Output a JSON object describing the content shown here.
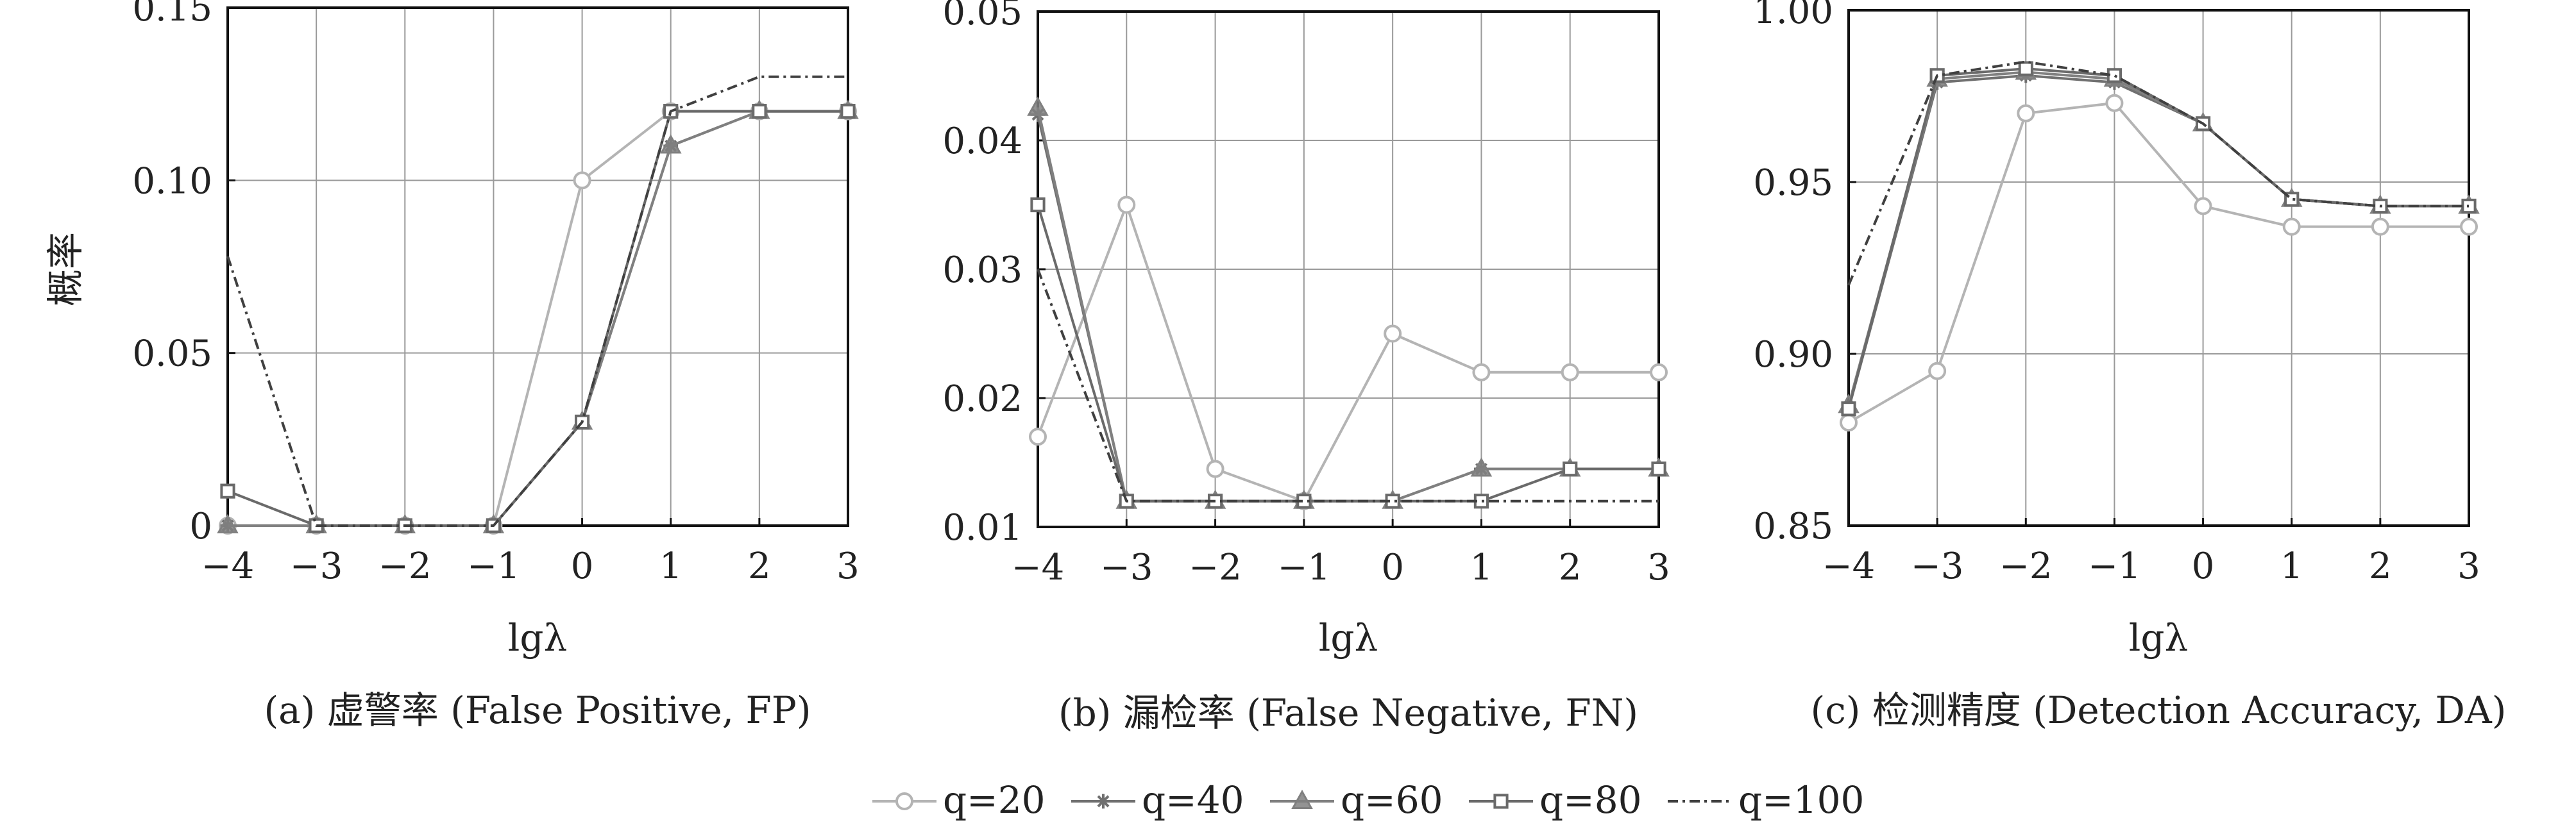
{
  "figure": {
    "ylabel": "概率",
    "legend": {
      "placement": "bottom-center",
      "entries": [
        {
          "series": "q20",
          "label": "q=20"
        },
        {
          "series": "q40",
          "label": "q=40"
        },
        {
          "series": "q60",
          "label": "q=60"
        },
        {
          "series": "q80",
          "label": "q=80"
        },
        {
          "series": "q100",
          "label": "q=100"
        }
      ]
    }
  },
  "styles": {
    "q20": {
      "color": "#b4b4b4",
      "dash": "none",
      "marker": "circle"
    },
    "q40": {
      "color": "#707070",
      "dash": "none",
      "marker": "star"
    },
    "q60": {
      "color": "#808080",
      "dash": "none",
      "marker": "triangle"
    },
    "q80": {
      "color": "#6a6a6a",
      "dash": "none",
      "marker": "square"
    },
    "q100": {
      "color": "#404040",
      "dash": "16,7,4,7",
      "marker": "none"
    }
  },
  "chart_data": [
    {
      "type": "line",
      "title": "(a) 虚警率 (False Positive, FP)",
      "xlabel": "lgλ",
      "ylabel": "概率",
      "x": [
        -4,
        -3,
        -2,
        -1,
        0,
        1,
        2,
        3
      ],
      "xticks": [
        "-4",
        "-3",
        "-2",
        "-1",
        "0",
        "1",
        "2",
        "3"
      ],
      "ylim": [
        0,
        0.15
      ],
      "yticks": [
        0,
        0.05,
        0.1,
        0.15
      ],
      "ytick_labels": [
        "0",
        "0.05",
        "0.10",
        "0.15"
      ],
      "grid": true,
      "series": [
        {
          "name": "q=20",
          "style": "q20",
          "values": [
            0.0,
            0.0,
            0.0,
            0.0,
            0.1,
            0.12,
            0.12,
            0.12
          ]
        },
        {
          "name": "q=40",
          "style": "q40",
          "values": [
            0.0,
            0.0,
            0.0,
            0.0,
            0.03,
            0.11,
            0.12,
            0.12
          ]
        },
        {
          "name": "q=60",
          "style": "q60",
          "values": [
            0.0,
            0.0,
            0.0,
            0.0,
            0.03,
            0.11,
            0.12,
            0.12
          ]
        },
        {
          "name": "q=80",
          "style": "q80",
          "values": [
            0.01,
            0.0,
            0.0,
            0.0,
            0.03,
            0.12,
            0.12,
            0.12
          ]
        },
        {
          "name": "q=100",
          "style": "q100",
          "values": [
            0.078,
            0.0,
            0.0,
            0.0,
            0.03,
            0.12,
            0.13,
            0.13
          ]
        }
      ]
    },
    {
      "type": "line",
      "title": "(b) 漏检率 (False Negative, FN)",
      "xlabel": "lgλ",
      "ylabel": "",
      "x": [
        -4,
        -3,
        -2,
        -1,
        0,
        1,
        2,
        3
      ],
      "xticks": [
        "-4",
        "-3",
        "-2",
        "-1",
        "0",
        "1",
        "2",
        "3"
      ],
      "ylim": [
        0.01,
        0.05
      ],
      "yticks": [
        0.01,
        0.02,
        0.03,
        0.04,
        0.05
      ],
      "ytick_labels": [
        "0.01",
        "0.02",
        "0.03",
        "0.04",
        "0.05"
      ],
      "grid": true,
      "series": [
        {
          "name": "q=20",
          "style": "q20",
          "values": [
            0.017,
            0.035,
            0.0145,
            0.012,
            0.025,
            0.022,
            0.022,
            0.022
          ]
        },
        {
          "name": "q=40",
          "style": "q40",
          "values": [
            0.042,
            0.012,
            0.012,
            0.012,
            0.012,
            0.0145,
            0.0145,
            0.0145
          ]
        },
        {
          "name": "q=60",
          "style": "q60",
          "values": [
            0.0425,
            0.012,
            0.012,
            0.012,
            0.012,
            0.0145,
            0.0145,
            0.0145
          ]
        },
        {
          "name": "q=80",
          "style": "q80",
          "values": [
            0.035,
            0.012,
            0.012,
            0.012,
            0.012,
            0.012,
            0.0145,
            0.0145
          ]
        },
        {
          "name": "q=100",
          "style": "q100",
          "values": [
            0.03,
            0.012,
            0.012,
            0.012,
            0.012,
            0.012,
            0.012,
            0.012
          ]
        }
      ]
    },
    {
      "type": "line",
      "title": "(c) 检测精度 (Detection Accuracy, DA)",
      "xlabel": "lgλ",
      "ylabel": "",
      "x": [
        -4,
        -3,
        -2,
        -1,
        0,
        1,
        2,
        3
      ],
      "xticks": [
        "-4",
        "-3",
        "-2",
        "-1",
        "0",
        "1",
        "2",
        "3"
      ],
      "ylim": [
        0.85,
        1.0
      ],
      "yticks": [
        0.85,
        0.9,
        0.95,
        1.0
      ],
      "ytick_labels": [
        "0.85",
        "0.90",
        "0.95",
        "1.00"
      ],
      "grid": true,
      "series": [
        {
          "name": "q=20",
          "style": "q20",
          "values": [
            0.88,
            0.895,
            0.97,
            0.973,
            0.943,
            0.937,
            0.937,
            0.937
          ]
        },
        {
          "name": "q=40",
          "style": "q40",
          "values": [
            0.884,
            0.979,
            0.981,
            0.979,
            0.967,
            0.945,
            0.943,
            0.943
          ]
        },
        {
          "name": "q=60",
          "style": "q60",
          "values": [
            0.885,
            0.98,
            0.982,
            0.98,
            0.967,
            0.945,
            0.943,
            0.943
          ]
        },
        {
          "name": "q=80",
          "style": "q80",
          "values": [
            0.884,
            0.981,
            0.983,
            0.981,
            0.967,
            0.945,
            0.943,
            0.943
          ]
        },
        {
          "name": "q=100",
          "style": "q100",
          "values": [
            0.92,
            0.981,
            0.985,
            0.981,
            0.967,
            0.945,
            0.943,
            0.943
          ]
        }
      ]
    }
  ]
}
